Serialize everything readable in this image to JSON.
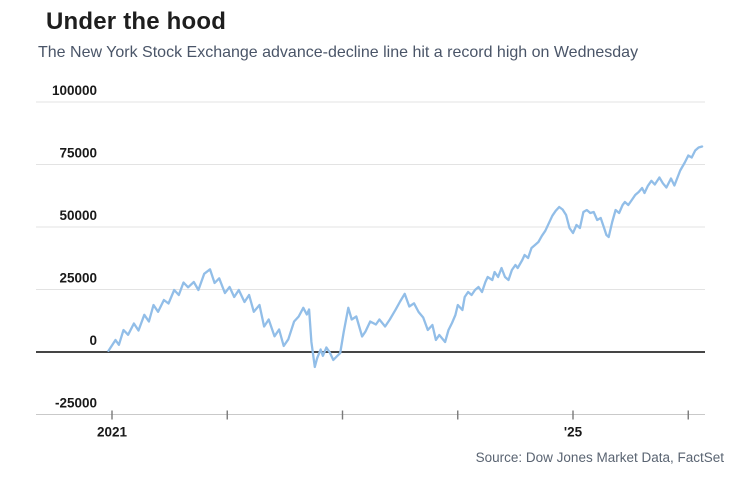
{
  "header": {
    "title": "Under the hood",
    "subtitle": "The New York Stock Exchange advance-decline line hit a record high on Wednesday"
  },
  "footer": {
    "source": "Source: Dow Jones Market Data, FactSet"
  },
  "colors": {
    "title": "#1e1e1e",
    "subtitle": "#4a5568",
    "line": "#92bee8",
    "grid": "#e3e3e3",
    "zero_line": "#454545",
    "bottom_axis": "#c9c9c9",
    "tick_mark": "#7a7a7a",
    "axis_label": "#191919",
    "source": "#5a6472"
  },
  "chart_data": {
    "type": "line",
    "title": "Under the hood",
    "subtitle": "The New York Stock Exchange advance-decline line hit a record high on Wednesday",
    "xlabel": "",
    "ylabel": "",
    "grid": "horizontal",
    "legend_position": "none",
    "ylim": [
      -25000,
      100000
    ],
    "xlim": [
      2020.95,
      2026.28
    ],
    "y_ticks": [
      {
        "value": 100000,
        "label": "100000"
      },
      {
        "value": 75000,
        "label": "75000"
      },
      {
        "value": 50000,
        "label": "50000"
      },
      {
        "value": 25000,
        "label": "25000"
      },
      {
        "value": 0,
        "label": "0"
      },
      {
        "value": -25000,
        "label": "-25000"
      }
    ],
    "x_ticks": [
      {
        "year": 2021,
        "label": "2021"
      },
      {
        "year": 2022,
        "label": ""
      },
      {
        "year": 2023,
        "label": ""
      },
      {
        "year": 2024,
        "label": ""
      },
      {
        "year": 2025,
        "label": "'25"
      },
      {
        "year": 2026,
        "label": ""
      }
    ],
    "series": [
      {
        "name": "NYSE advance-decline line",
        "color": "#92bee8",
        "points": [
          [
            2020.97,
            500
          ],
          [
            2021.03,
            4800
          ],
          [
            2021.06,
            2900
          ],
          [
            2021.1,
            8800
          ],
          [
            2021.14,
            6900
          ],
          [
            2021.19,
            11400
          ],
          [
            2021.23,
            8600
          ],
          [
            2021.28,
            14900
          ],
          [
            2021.32,
            12200
          ],
          [
            2021.36,
            18800
          ],
          [
            2021.4,
            16100
          ],
          [
            2021.45,
            20800
          ],
          [
            2021.49,
            19400
          ],
          [
            2021.54,
            24800
          ],
          [
            2021.58,
            22800
          ],
          [
            2021.62,
            27800
          ],
          [
            2021.66,
            25900
          ],
          [
            2021.71,
            28000
          ],
          [
            2021.75,
            24800
          ],
          [
            2021.8,
            31300
          ],
          [
            2021.85,
            33100
          ],
          [
            2021.89,
            27600
          ],
          [
            2021.93,
            29500
          ],
          [
            2021.98,
            23600
          ],
          [
            2022.02,
            26000
          ],
          [
            2022.06,
            22000
          ],
          [
            2022.1,
            24800
          ],
          [
            2022.15,
            20000
          ],
          [
            2022.19,
            22800
          ],
          [
            2022.23,
            16100
          ],
          [
            2022.28,
            18800
          ],
          [
            2022.32,
            10200
          ],
          [
            2022.36,
            13000
          ],
          [
            2022.41,
            6300
          ],
          [
            2022.45,
            9000
          ],
          [
            2022.49,
            2400
          ],
          [
            2022.53,
            5100
          ],
          [
            2022.58,
            12200
          ],
          [
            2022.62,
            14200
          ],
          [
            2022.66,
            17700
          ],
          [
            2022.69,
            15000
          ],
          [
            2022.71,
            17000
          ],
          [
            2022.73,
            4000
          ],
          [
            2022.76,
            -6000
          ],
          [
            2022.78,
            -2500
          ],
          [
            2022.81,
            1000
          ],
          [
            2022.83,
            -1500
          ],
          [
            2022.86,
            1800
          ],
          [
            2022.89,
            -200
          ],
          [
            2022.92,
            -3200
          ],
          [
            2022.95,
            -1800
          ],
          [
            2022.98,
            -400
          ],
          [
            2023.01,
            8000
          ],
          [
            2023.05,
            17700
          ],
          [
            2023.08,
            13000
          ],
          [
            2023.12,
            14200
          ],
          [
            2023.17,
            6200
          ],
          [
            2023.2,
            8300
          ],
          [
            2023.24,
            12200
          ],
          [
            2023.29,
            11000
          ],
          [
            2023.32,
            13000
          ],
          [
            2023.37,
            10200
          ],
          [
            2023.41,
            13000
          ],
          [
            2023.46,
            16900
          ],
          [
            2023.5,
            20200
          ],
          [
            2023.54,
            23300
          ],
          [
            2023.58,
            18200
          ],
          [
            2023.62,
            19500
          ],
          [
            2023.66,
            16000
          ],
          [
            2023.7,
            13800
          ],
          [
            2023.74,
            8800
          ],
          [
            2023.78,
            10800
          ],
          [
            2023.81,
            4800
          ],
          [
            2023.84,
            6800
          ],
          [
            2023.89,
            4000
          ],
          [
            2023.92,
            8800
          ],
          [
            2023.95,
            11600
          ],
          [
            2023.98,
            14800
          ],
          [
            2024.0,
            18800
          ],
          [
            2024.04,
            16800
          ],
          [
            2024.06,
            22000
          ],
          [
            2024.09,
            24000
          ],
          [
            2024.12,
            22800
          ],
          [
            2024.15,
            24800
          ],
          [
            2024.18,
            26000
          ],
          [
            2024.21,
            24000
          ],
          [
            2024.24,
            28000
          ],
          [
            2024.26,
            30000
          ],
          [
            2024.3,
            28800
          ],
          [
            2024.32,
            32000
          ],
          [
            2024.35,
            30000
          ],
          [
            2024.38,
            33600
          ],
          [
            2024.41,
            30000
          ],
          [
            2024.44,
            28800
          ],
          [
            2024.47,
            32800
          ],
          [
            2024.5,
            34800
          ],
          [
            2024.52,
            33600
          ],
          [
            2024.56,
            36800
          ],
          [
            2024.58,
            38800
          ],
          [
            2024.61,
            37600
          ],
          [
            2024.64,
            41600
          ],
          [
            2024.67,
            42800
          ],
          [
            2024.7,
            44000
          ],
          [
            2024.73,
            46500
          ],
          [
            2024.76,
            48500
          ],
          [
            2024.79,
            51500
          ],
          [
            2024.82,
            54500
          ],
          [
            2024.85,
            56500
          ],
          [
            2024.88,
            58000
          ],
          [
            2024.91,
            57000
          ],
          [
            2024.94,
            54800
          ],
          [
            2024.97,
            49600
          ],
          [
            2025.0,
            47600
          ],
          [
            2025.03,
            50800
          ],
          [
            2025.06,
            49600
          ],
          [
            2025.09,
            56000
          ],
          [
            2025.12,
            56800
          ],
          [
            2025.15,
            55600
          ],
          [
            2025.18,
            56000
          ],
          [
            2025.21,
            52800
          ],
          [
            2025.24,
            53600
          ],
          [
            2025.27,
            49600
          ],
          [
            2025.29,
            46800
          ],
          [
            2025.31,
            46000
          ],
          [
            2025.34,
            52000
          ],
          [
            2025.37,
            56800
          ],
          [
            2025.4,
            55600
          ],
          [
            2025.43,
            58800
          ],
          [
            2025.45,
            60000
          ],
          [
            2025.48,
            58800
          ],
          [
            2025.51,
            60800
          ],
          [
            2025.54,
            62800
          ],
          [
            2025.57,
            64000
          ],
          [
            2025.6,
            65600
          ],
          [
            2025.62,
            63600
          ],
          [
            2025.65,
            66500
          ],
          [
            2025.68,
            68500
          ],
          [
            2025.71,
            67000
          ],
          [
            2025.75,
            69800
          ],
          [
            2025.78,
            67500
          ],
          [
            2025.81,
            65800
          ],
          [
            2025.85,
            69400
          ],
          [
            2025.88,
            66600
          ],
          [
            2025.93,
            72600
          ],
          [
            2025.97,
            75800
          ],
          [
            2026.0,
            78600
          ],
          [
            2026.03,
            77800
          ],
          [
            2026.06,
            80600
          ],
          [
            2026.09,
            81800
          ],
          [
            2026.12,
            82200
          ]
        ]
      }
    ]
  }
}
